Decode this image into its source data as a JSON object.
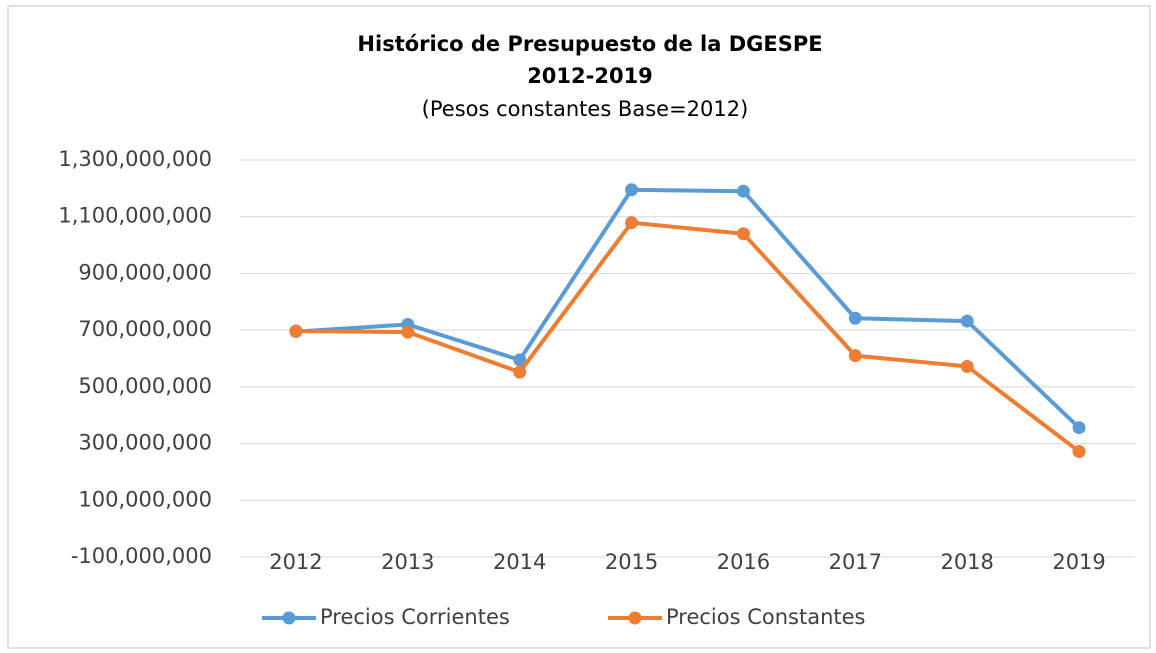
{
  "chart_data": {
    "type": "line",
    "title": "Histórico de Presupuesto de la DGESPE",
    "subtitle": "2012-2019",
    "units": "(Pesos constantes  Base=2012)",
    "categories": [
      "2012",
      "2013",
      "2014",
      "2015",
      "2016",
      "2017",
      "2018",
      "2019"
    ],
    "series": [
      {
        "name": "Precios Corrientes",
        "color": "#5b9bd5",
        "values": [
          695000000,
          720000000,
          595000000,
          1195000000,
          1190000000,
          742000000,
          732000000,
          356000000
        ]
      },
      {
        "name": "Precios Constantes",
        "color": "#ed7d31",
        "values": [
          697000000,
          693000000,
          552000000,
          1079000000,
          1040000000,
          610000000,
          572000000,
          272000000
        ]
      }
    ],
    "ylim": [
      -100000000,
      1300000000
    ],
    "yticks": [
      {
        "value": -100000000,
        "label": "-100,000,000"
      },
      {
        "value": 100000000,
        "label": "100,000,000"
      },
      {
        "value": 300000000,
        "label": "300,000,000"
      },
      {
        "value": 500000000,
        "label": "500,000,000"
      },
      {
        "value": 700000000,
        "label": "700,000,000"
      },
      {
        "value": 900000000,
        "label": "900,000,000"
      },
      {
        "value": 1100000000,
        "label": "1,100,000,000"
      },
      {
        "value": 1300000000,
        "label": "1,300,000,000"
      }
    ],
    "grid": true,
    "legend": "bottom"
  }
}
